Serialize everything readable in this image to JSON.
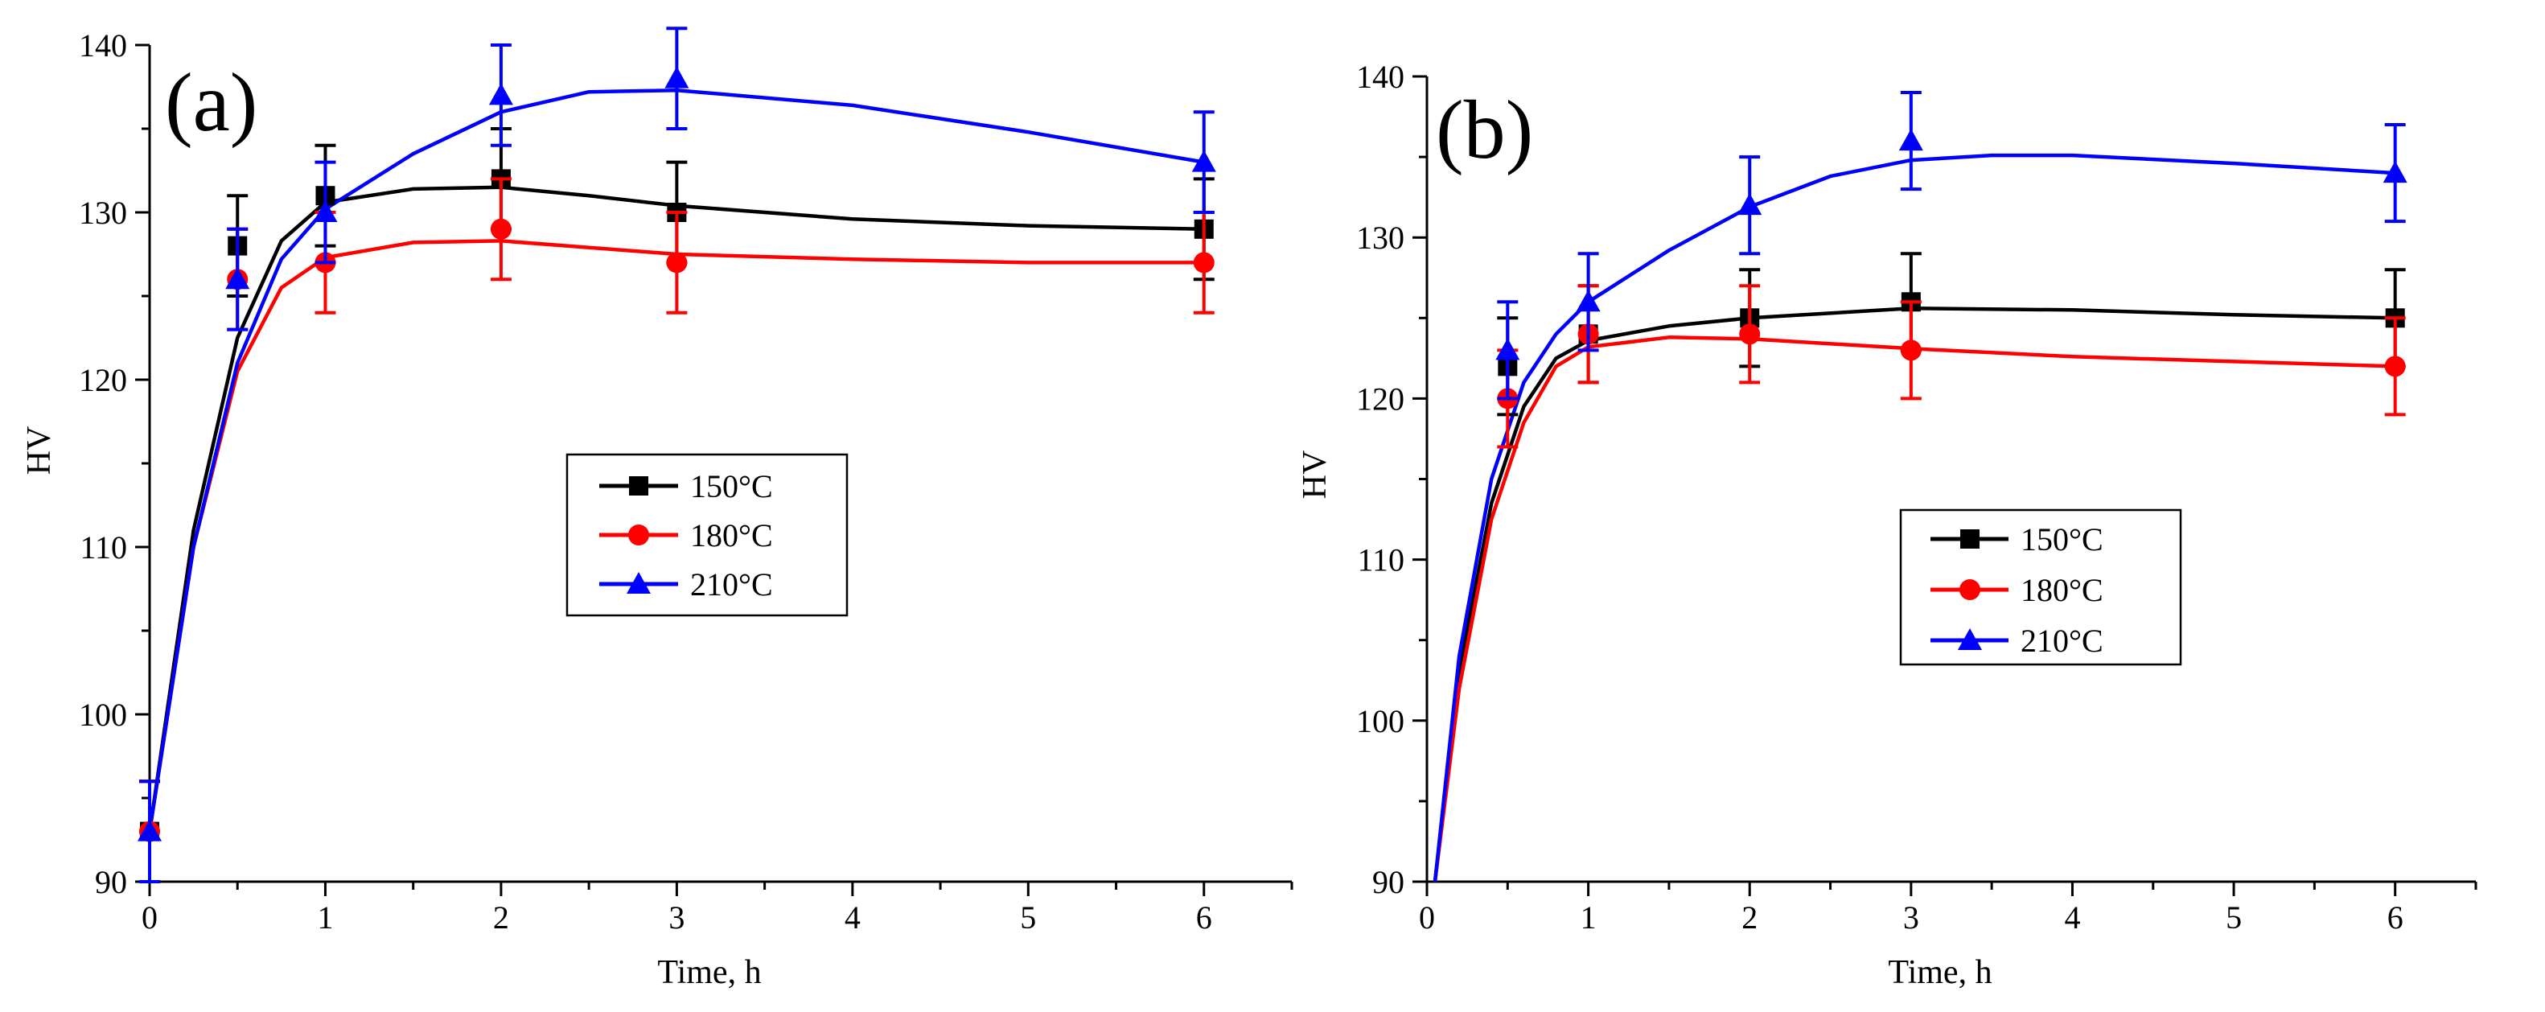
{
  "colors": {
    "s150": "#000000",
    "s180": "#ff0000",
    "s210": "#0000ff"
  },
  "chart_data": [
    {
      "type": "line",
      "panel_label": "(a)",
      "title": "",
      "xlabel": "Time, h",
      "ylabel": "HV",
      "xlim": [
        0,
        6.5
      ],
      "ylim": [
        90,
        140
      ],
      "xticks": [
        0,
        1,
        2,
        3,
        4,
        5,
        6
      ],
      "yticks": [
        90,
        100,
        110,
        120,
        130,
        140
      ],
      "x": [
        0,
        0.5,
        1,
        2,
        3,
        6
      ],
      "legend_position": "center",
      "series": [
        {
          "name": "150°C",
          "marker": "square",
          "color": "#000000",
          "values": [
            93,
            128,
            131,
            132,
            130,
            129
          ],
          "errors": [
            3,
            3,
            3,
            3,
            3,
            3
          ],
          "fit": [
            [
              0,
              93
            ],
            [
              0.25,
              111
            ],
            [
              0.5,
              122.5
            ],
            [
              0.75,
              128.3
            ],
            [
              1,
              130.6
            ],
            [
              1.5,
              131.4
            ],
            [
              2,
              131.5
            ],
            [
              2.5,
              131
            ],
            [
              3,
              130.4
            ],
            [
              4,
              129.6
            ],
            [
              5,
              129.2
            ],
            [
              6,
              129
            ]
          ]
        },
        {
          "name": "180°C",
          "marker": "circle",
          "color": "#ff0000",
          "values": [
            93,
            126,
            127,
            129,
            127,
            127
          ],
          "errors": [
            3,
            3,
            3,
            3,
            3,
            3
          ],
          "fit": [
            [
              0,
              93
            ],
            [
              0.25,
              110
            ],
            [
              0.5,
              120.5
            ],
            [
              0.75,
              125.5
            ],
            [
              1,
              127.3
            ],
            [
              1.5,
              128.2
            ],
            [
              2,
              128.3
            ],
            [
              2.5,
              127.9
            ],
            [
              3,
              127.5
            ],
            [
              4,
              127.2
            ],
            [
              5,
              127
            ],
            [
              6,
              127
            ]
          ]
        },
        {
          "name": "210°C",
          "marker": "triangle",
          "color": "#0000ff",
          "values": [
            93,
            126,
            130,
            137,
            138,
            133
          ],
          "errors": [
            3,
            3,
            3,
            3,
            3,
            3
          ],
          "fit": [
            [
              0,
              93
            ],
            [
              0.25,
              110
            ],
            [
              0.5,
              121
            ],
            [
              0.75,
              127.2
            ],
            [
              1,
              130.2
            ],
            [
              1.5,
              133.5
            ],
            [
              2,
              136
            ],
            [
              2.5,
              137.2
            ],
            [
              3,
              137.3
            ],
            [
              4,
              136.4
            ],
            [
              5,
              134.8
            ],
            [
              6,
              133
            ]
          ]
        }
      ]
    },
    {
      "type": "line",
      "panel_label": "(b)",
      "title": "",
      "xlabel": "Time, h",
      "ylabel": "HV",
      "xlim": [
        0,
        6.5
      ],
      "ylim": [
        90,
        140
      ],
      "xticks": [
        0,
        1,
        2,
        3,
        4,
        5,
        6
      ],
      "yticks": [
        90,
        100,
        110,
        120,
        130,
        140
      ],
      "x": [
        0.5,
        1,
        2,
        3,
        6
      ],
      "legend_position": "center-right",
      "series": [
        {
          "name": "150°C",
          "marker": "square",
          "color": "#000000",
          "values": [
            122,
            124,
            125,
            126,
            125
          ],
          "errors": [
            3,
            3,
            3,
            3,
            3
          ],
          "fit": [
            [
              0.05,
              90
            ],
            [
              0.2,
              103
            ],
            [
              0.4,
              113.5
            ],
            [
              0.6,
              119.5
            ],
            [
              0.8,
              122.5
            ],
            [
              1,
              123.6
            ],
            [
              1.5,
              124.5
            ],
            [
              2,
              125
            ],
            [
              3,
              125.6
            ],
            [
              4,
              125.5
            ],
            [
              5,
              125.2
            ],
            [
              6,
              125
            ]
          ]
        },
        {
          "name": "180°C",
          "marker": "circle",
          "color": "#ff0000",
          "values": [
            120,
            124,
            124,
            123,
            122
          ],
          "errors": [
            3,
            3,
            3,
            3,
            3
          ],
          "fit": [
            [
              0.05,
              90
            ],
            [
              0.2,
              102
            ],
            [
              0.4,
              112.5
            ],
            [
              0.6,
              118.5
            ],
            [
              0.8,
              122
            ],
            [
              1,
              123.2
            ],
            [
              1.5,
              123.8
            ],
            [
              2,
              123.7
            ],
            [
              3,
              123.1
            ],
            [
              4,
              122.6
            ],
            [
              5,
              122.3
            ],
            [
              6,
              122
            ]
          ]
        },
        {
          "name": "210°C",
          "marker": "triangle",
          "color": "#0000ff",
          "values": [
            123,
            126,
            132,
            136,
            134
          ],
          "errors": [
            3,
            3,
            3,
            3,
            3
          ],
          "fit": [
            [
              0.05,
              90
            ],
            [
              0.2,
              104
            ],
            [
              0.4,
              115
            ],
            [
              0.6,
              121
            ],
            [
              0.8,
              124
            ],
            [
              1,
              126
            ],
            [
              1.5,
              129.2
            ],
            [
              2,
              131.9
            ],
            [
              2.5,
              133.8
            ],
            [
              3,
              134.8
            ],
            [
              3.5,
              135.1
            ],
            [
              4,
              135.1
            ],
            [
              5,
              134.6
            ],
            [
              6,
              134
            ]
          ]
        }
      ]
    }
  ]
}
